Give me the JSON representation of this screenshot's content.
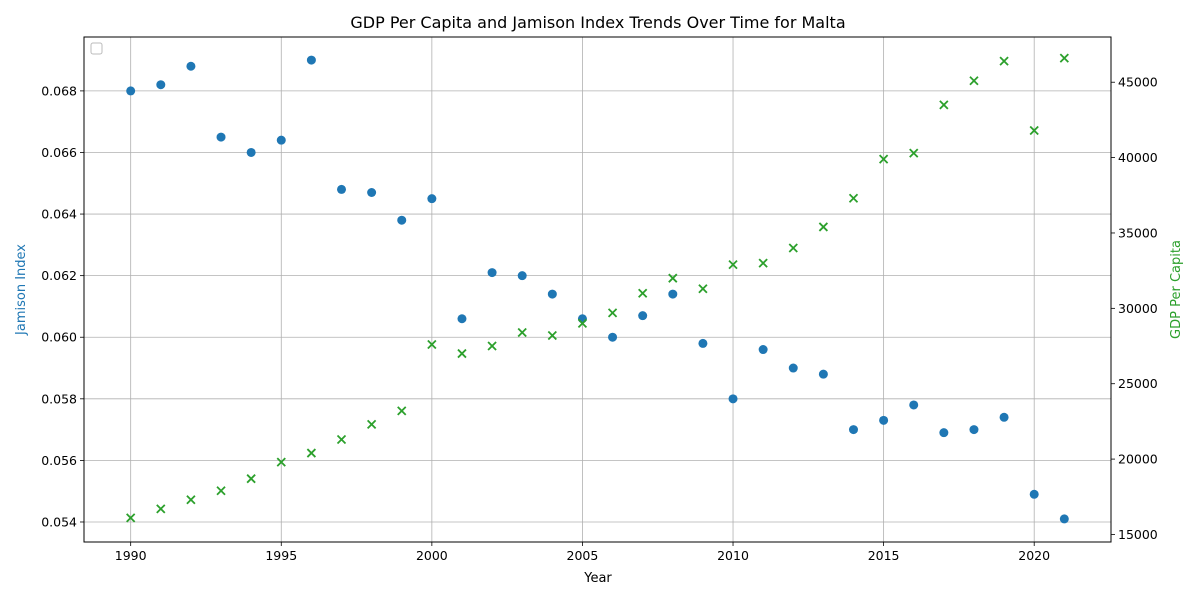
{
  "chart_data": {
    "type": "scatter",
    "title": "GDP Per Capita and Jamison Index Trends Over Time for Malta",
    "xlabel": "Year",
    "ylabel_left": "Jamison Index",
    "ylabel_right": "GDP Per Capita",
    "xlim": [
      1988.45,
      2022.55
    ],
    "ylim_left": [
      0.05335,
      0.06975
    ],
    "ylim_right": [
      14500,
      48000
    ],
    "x_ticks": [
      1990,
      1995,
      2000,
      2005,
      2010,
      2015,
      2020
    ],
    "y_ticks_left": [
      0.054,
      0.056,
      0.058,
      0.06,
      0.062,
      0.064,
      0.066,
      0.068
    ],
    "y_ticks_left_labels": [
      "0.054",
      "0.056",
      "0.058",
      "0.060",
      "0.062",
      "0.064",
      "0.066",
      "0.068"
    ],
    "y_ticks_right": [
      15000,
      20000,
      25000,
      30000,
      35000,
      40000,
      45000
    ],
    "y_ticks_right_labels": [
      "15000",
      "20000",
      "25000",
      "30000",
      "35000",
      "40000",
      "45000"
    ],
    "grid": true,
    "legend_position": "upper-left",
    "colors": {
      "jamison": "#1f77b4",
      "gdp": "#2ca02c"
    },
    "x": [
      1990,
      1991,
      1992,
      1993,
      1994,
      1995,
      1996,
      1997,
      1998,
      1999,
      2000,
      2001,
      2002,
      2003,
      2004,
      2005,
      2006,
      2007,
      2008,
      2009,
      2010,
      2011,
      2012,
      2013,
      2014,
      2015,
      2016,
      2017,
      2018,
      2019,
      2020,
      2021
    ],
    "series": [
      {
        "axis": "left",
        "marker": "circle",
        "values": [
          0.068,
          0.0682,
          0.0688,
          0.0665,
          0.066,
          0.0664,
          0.069,
          0.0648,
          0.0647,
          0.0638,
          0.0645,
          0.0606,
          0.0621,
          0.062,
          0.0614,
          0.0606,
          0.06,
          0.0607,
          0.0614,
          0.0598,
          0.058,
          0.0596,
          0.059,
          0.0588,
          0.057,
          0.0573,
          0.0578,
          0.0569,
          0.057,
          0.0574,
          0.0549,
          0.0541
        ]
      },
      {
        "axis": "right",
        "marker": "x",
        "values": [
          16100,
          16700,
          17300,
          17900,
          18700,
          19800,
          20400,
          21300,
          22300,
          23200,
          27600,
          27000,
          27500,
          28400,
          28200,
          29000,
          29700,
          31000,
          32000,
          31300,
          32900,
          33000,
          34000,
          35400,
          37300,
          39900,
          40300,
          43500,
          45100,
          46400,
          41800,
          46600
        ]
      }
    ]
  }
}
